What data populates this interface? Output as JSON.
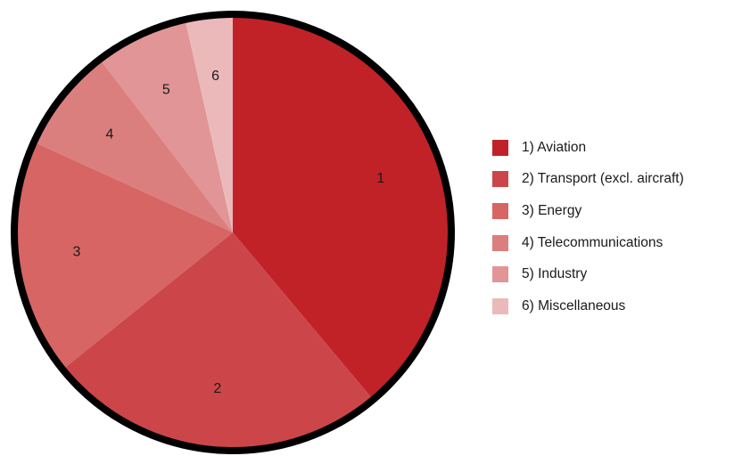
{
  "chart_data": {
    "type": "pie",
    "categories": [
      "1) Aviation",
      "2) Transport (excl. aircraft)",
      "3) Energy",
      "4) Telecommunications",
      "5) Industry",
      "6) Miscellaneous"
    ],
    "slice_labels": [
      "1",
      "2",
      "3",
      "4",
      "5",
      "6"
    ],
    "values": [
      38.9,
      25.3,
      17.6,
      7.8,
      6.9,
      3.5
    ],
    "colors": [
      "#c02228",
      "#cc4649",
      "#d66564",
      "#db7f7e",
      "#e19596",
      "#ecb9ba"
    ],
    "outline_color": "#000000",
    "legend_position": "right",
    "start_angle": "top",
    "direction": "clockwise"
  }
}
